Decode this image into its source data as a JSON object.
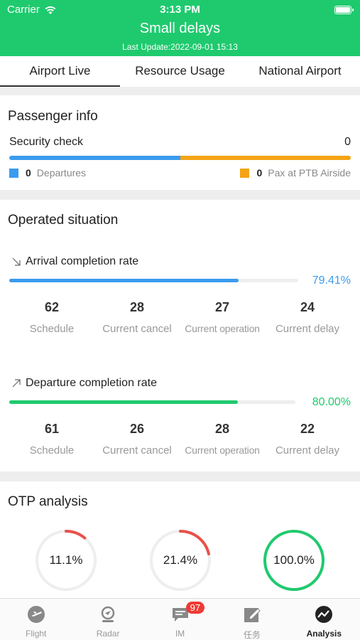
{
  "status_bar": {
    "carrier": "Carrier",
    "time": "3:13 PM"
  },
  "header": {
    "title": "Small delays",
    "last_update": "Last Update:2022-09-01 15:13"
  },
  "tabs": [
    {
      "label": "Airport Live",
      "active": true
    },
    {
      "label": "Resource Usage",
      "active": false
    },
    {
      "label": "National Airport",
      "active": false
    }
  ],
  "passenger": {
    "title": "Passenger info",
    "security_label": "Security check",
    "security_value": "0",
    "departures_value": "0",
    "departures_label": "Departures",
    "pax_value": "0",
    "pax_label": "Pax at PTB Airside"
  },
  "operated": {
    "title": "Operated situation",
    "arrival": {
      "label": "Arrival completion rate",
      "rate_text": "79.41%",
      "rate": 79.41,
      "stats": [
        {
          "value": "62",
          "label": "Schedule"
        },
        {
          "value": "28",
          "label": "Current cancel"
        },
        {
          "value": "27",
          "label": "Current operation"
        },
        {
          "value": "24",
          "label": "Current delay"
        }
      ]
    },
    "departure": {
      "label": "Departure completion rate",
      "rate_text": "80.00%",
      "rate": 80.0,
      "stats": [
        {
          "value": "61",
          "label": "Schedule"
        },
        {
          "value": "26",
          "label": "Current cancel"
        },
        {
          "value": "28",
          "label": "Current operation"
        },
        {
          "value": "22",
          "label": "Current delay"
        }
      ]
    }
  },
  "otp": {
    "title": "OTP analysis",
    "gauges": [
      {
        "text": "11.1%",
        "value": 11.1
      },
      {
        "text": "21.4%",
        "value": 21.4
      },
      {
        "text": "100.0%",
        "value": 100.0
      }
    ]
  },
  "nav": {
    "items": [
      {
        "label": "Flight",
        "icon": "flight-icon"
      },
      {
        "label": "Radar",
        "icon": "radar-icon"
      },
      {
        "label": "IM",
        "icon": "chat-icon",
        "badge": "97"
      },
      {
        "label": "任务",
        "icon": "task-edit-icon"
      },
      {
        "label": "Analysis",
        "icon": "analysis-icon",
        "active": true
      }
    ]
  },
  "colors": {
    "brand_green": "#1fca6e",
    "arrival_blue": "#3b9bef",
    "departure_green": "#1fca6e",
    "orange": "#f4a416",
    "gauge_red": "#e8514b",
    "gauge_green": "#1fca6e",
    "badge_red": "#ee3b34"
  }
}
